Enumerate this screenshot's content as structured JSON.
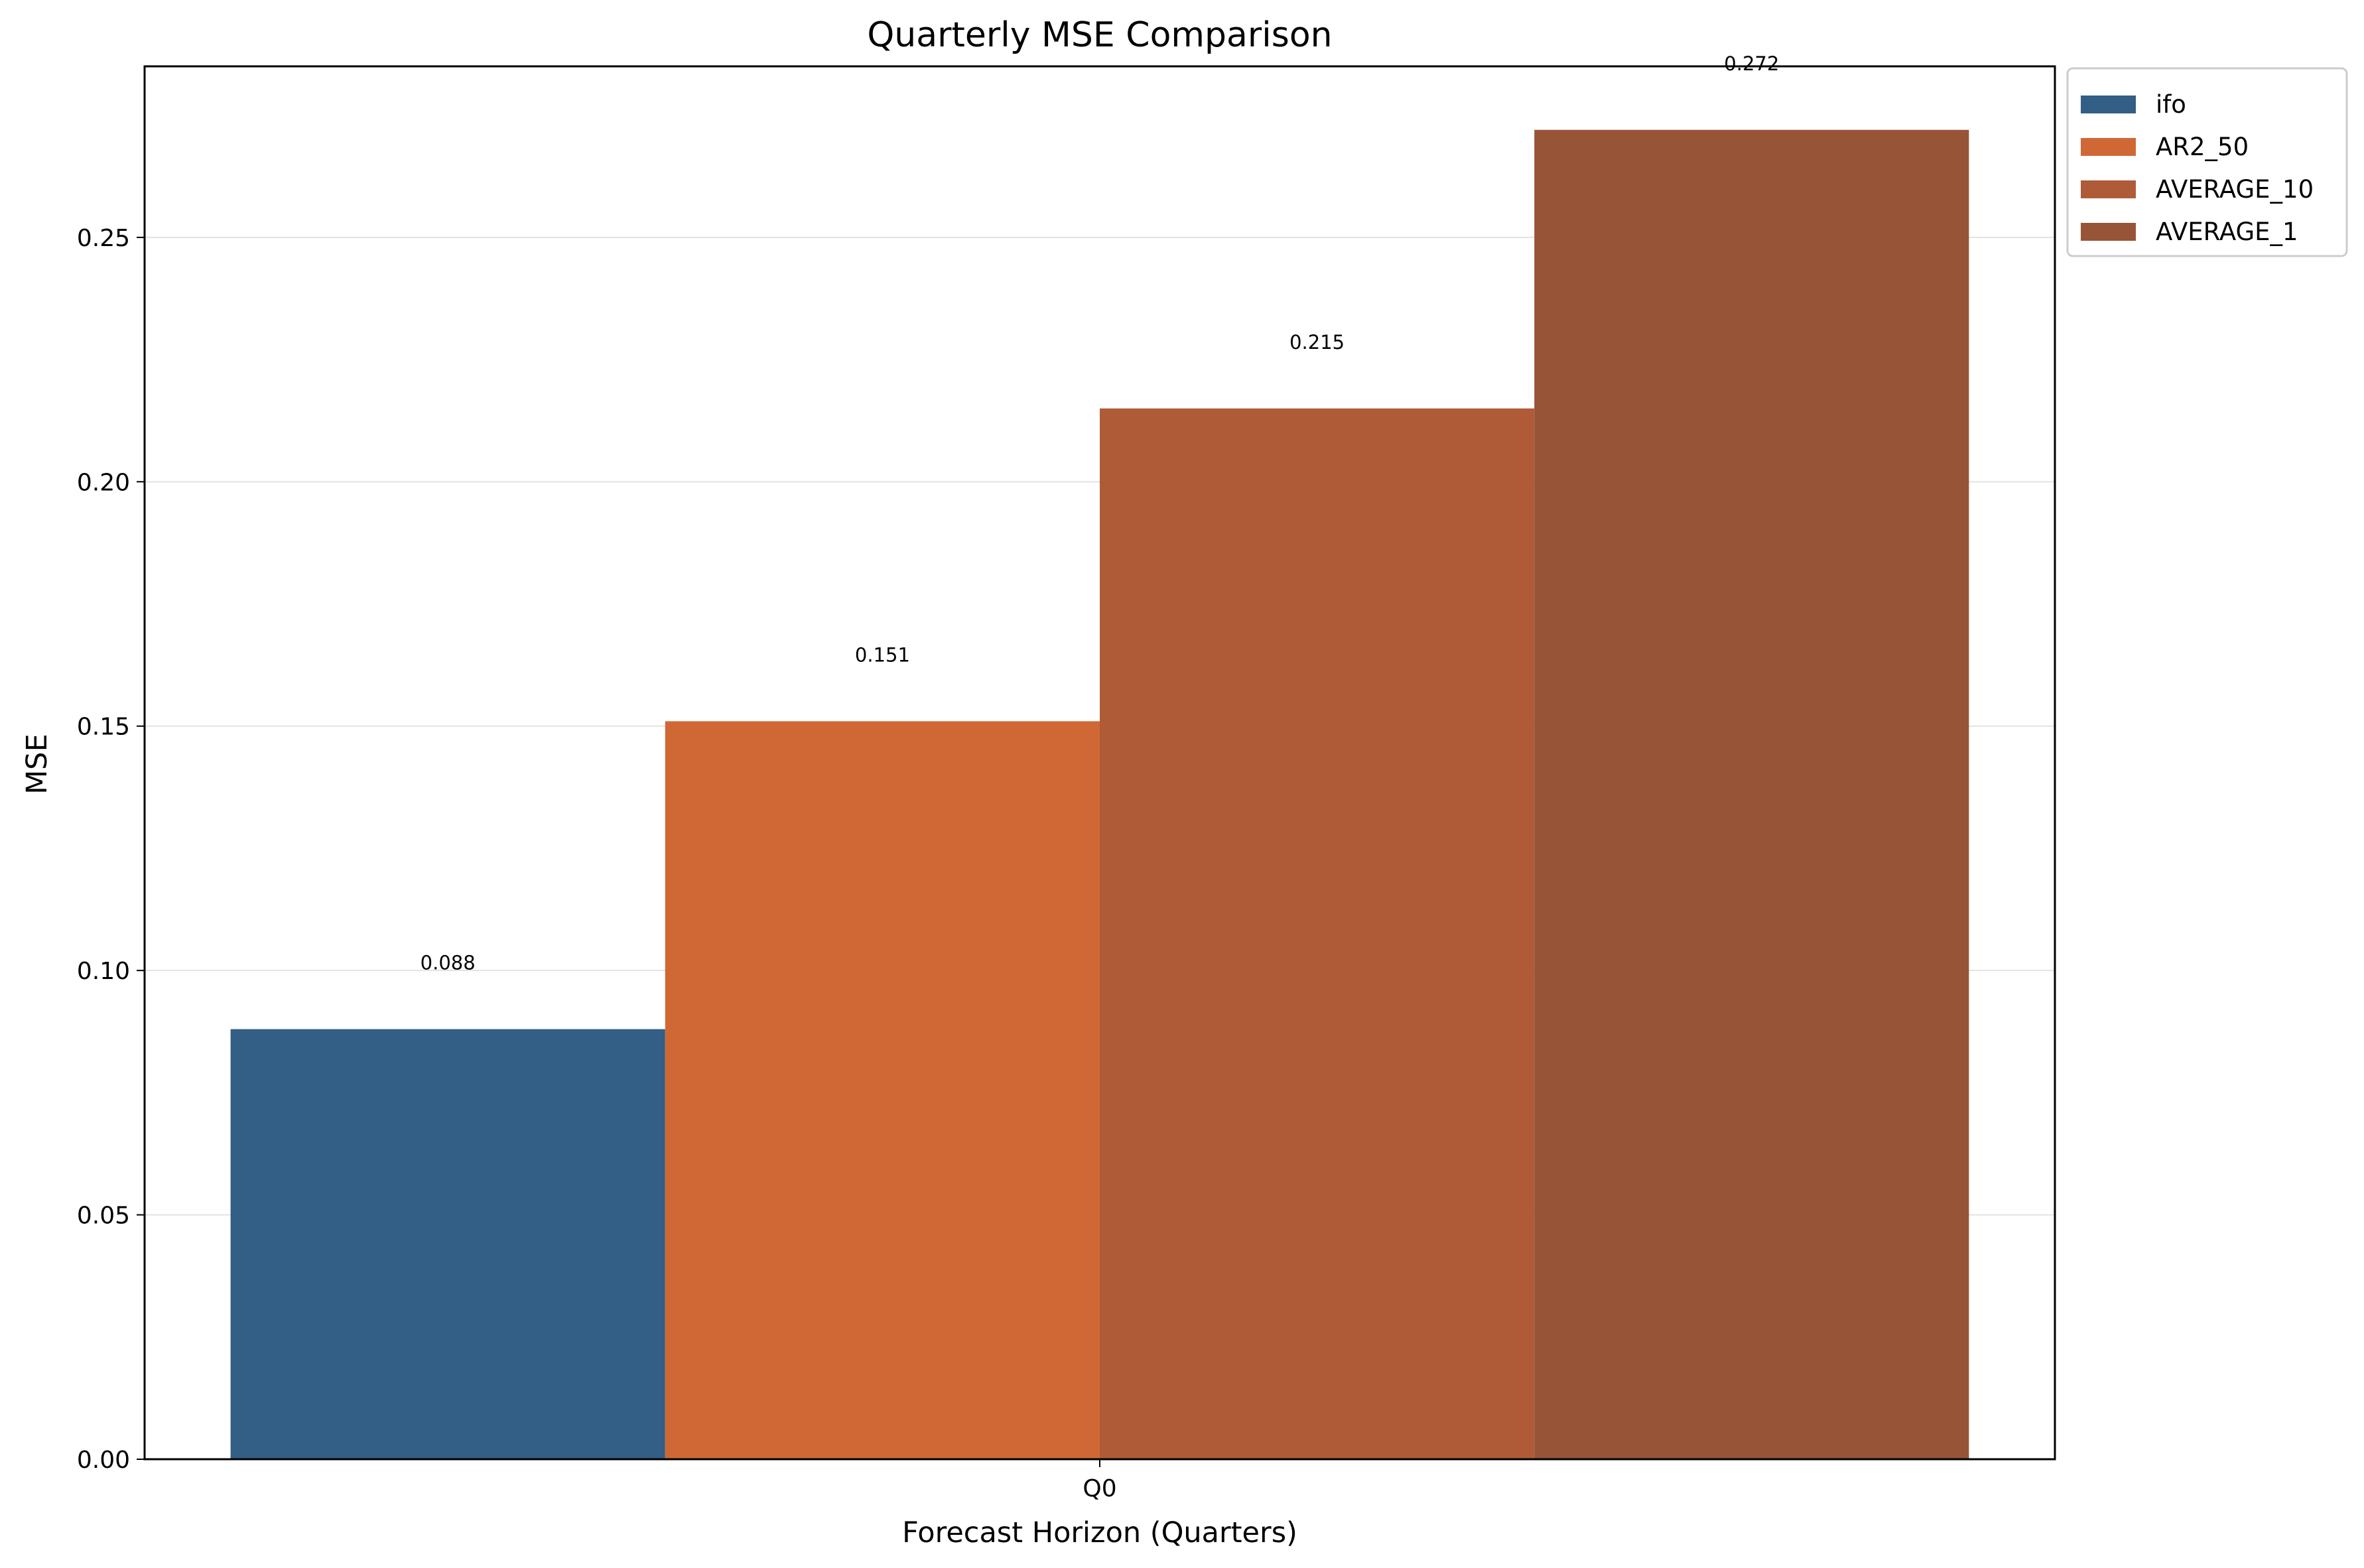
{
  "chart_data": {
    "type": "bar",
    "title": "Quarterly MSE Comparison",
    "xlabel": "Forecast Horizon (Quarters)",
    "ylabel": "MSE",
    "categories": [
      "Q0"
    ],
    "ylim": [
      0,
      0.285
    ],
    "yticks": [
      0.0,
      0.05,
      0.1,
      0.15,
      0.2,
      0.25
    ],
    "ytick_labels": [
      "0.00",
      "0.05",
      "0.10",
      "0.15",
      "0.20",
      "0.25"
    ],
    "grid": "horizontal",
    "legend_position": "outside-top-right",
    "series": [
      {
        "name": "ifo",
        "values": [
          0.088
        ],
        "label": "0.088",
        "color": "#335e85"
      },
      {
        "name": "AR2_50",
        "values": [
          0.151
        ],
        "label": "0.151",
        "color": "#d06836"
      },
      {
        "name": "AVERAGE_10",
        "values": [
          0.215
        ],
        "label": "0.215",
        "color": "#b05b37"
      },
      {
        "name": "AVERAGE_1",
        "values": [
          0.272
        ],
        "label": "0.272",
        "color": "#975437"
      }
    ]
  }
}
